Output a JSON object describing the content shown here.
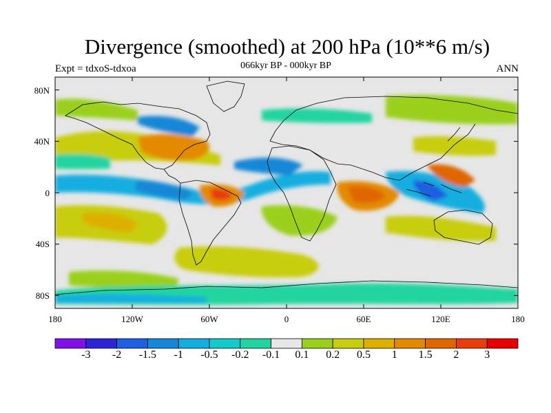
{
  "title": "Divergence (smoothed) at 200 hPa (10**6 m/s)",
  "subtitle_left": "Expt = tdxoS-tdxoa",
  "subtitle_center": "066kyr BP - 000kyr BP",
  "subtitle_right": "ANN",
  "latitude_labels": [
    "80N",
    "40N",
    "0",
    "40S",
    "80S"
  ],
  "longitude_labels": [
    "180",
    "120W",
    "60W",
    "0",
    "60E",
    "120E",
    "180"
  ],
  "colorbar": {
    "labels": [
      "-3",
      "-2",
      "-1.5",
      "-1",
      "-0.5",
      "-0.2",
      "-0.1",
      "0.1",
      "0.2",
      "0.5",
      "1",
      "1.5",
      "2",
      "3"
    ],
    "colors": [
      "#7f10e6",
      "#2d24d6",
      "#1e5fe0",
      "#1487d6",
      "#12aee0",
      "#13c9c9",
      "#22d4a0",
      "#e6e6e6",
      "#9ad01c",
      "#c8cd10",
      "#ddb000",
      "#e38a00",
      "#e06600",
      "#e83c0a",
      "#e80000"
    ]
  },
  "map_data": {
    "lon_range": [
      -180,
      180
    ],
    "lat_range": [
      -90,
      90
    ],
    "colors": {
      "background": "#e6e6e6",
      "coastline": "#000000"
    }
  }
}
